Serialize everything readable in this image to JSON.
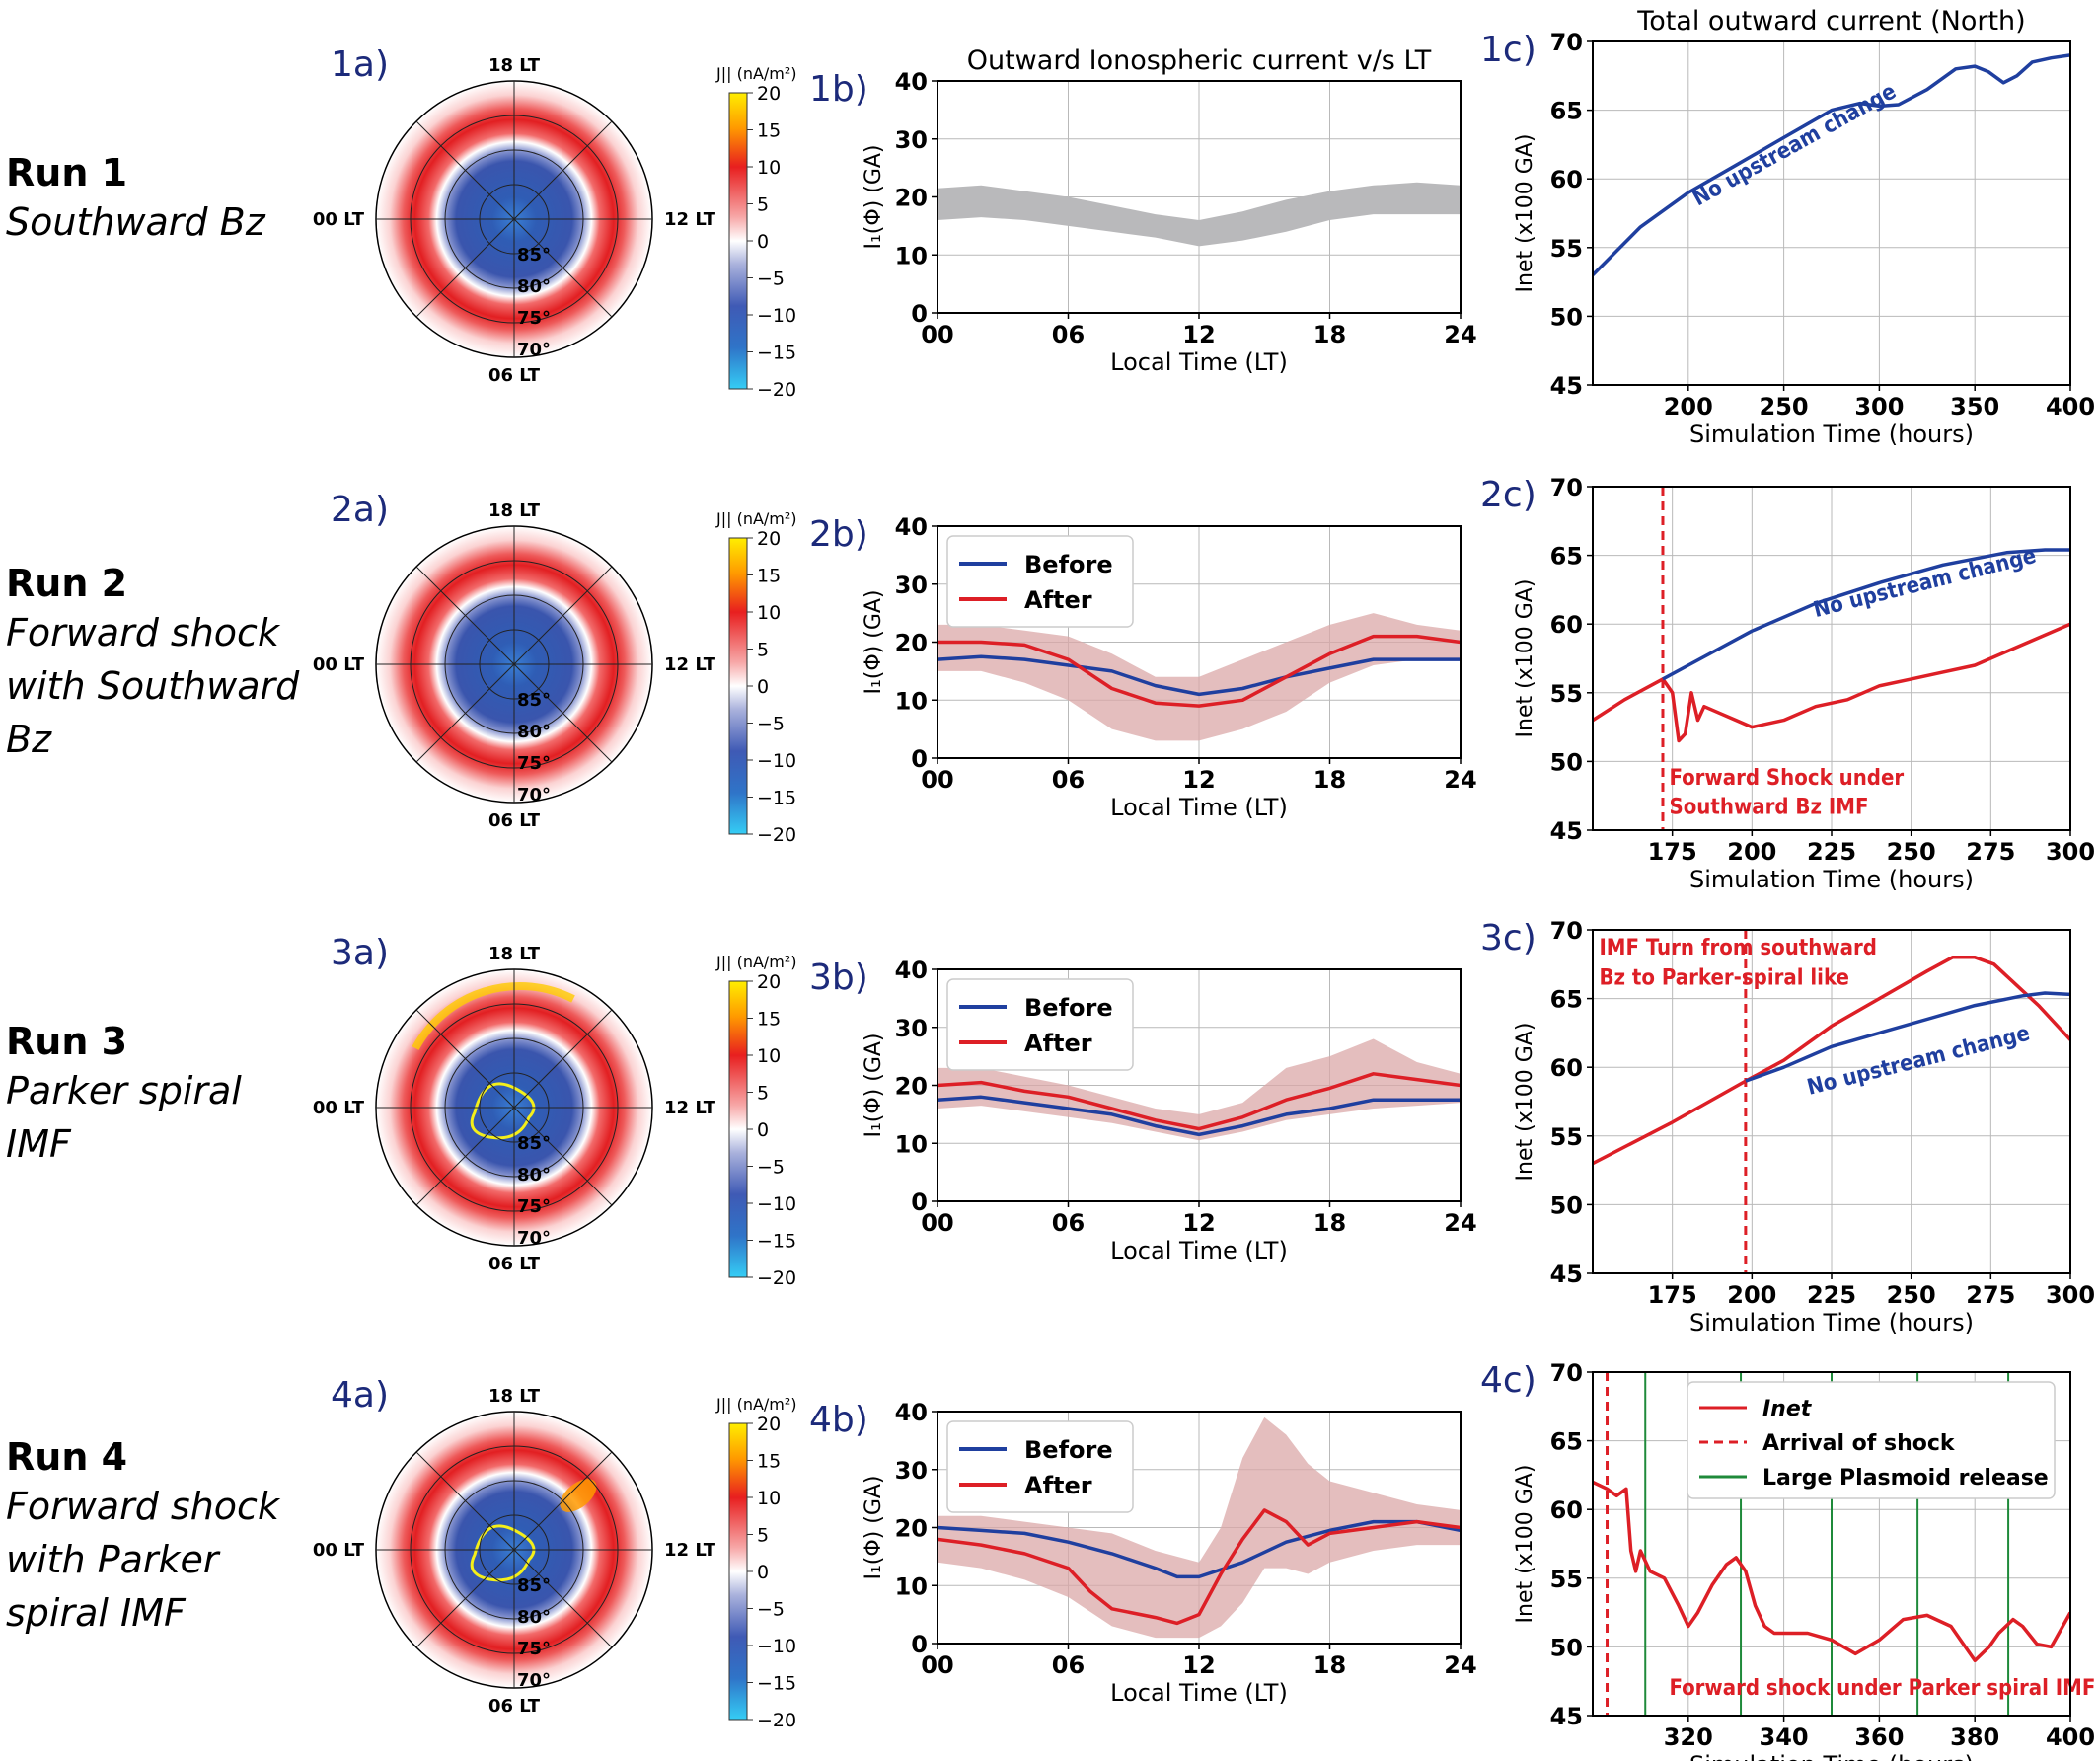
{
  "colors": {
    "before": "#1f3f9f",
    "after": "#dd1f26",
    "band_gray": "#b9b9bb",
    "band_after": "#dba8a8",
    "band_before": "#8e9fd6",
    "panel_label": "#1c2a7a",
    "plasmoid": "#1f8a3a"
  },
  "runs": [
    {
      "title": "Run 1",
      "subtitle_lines": [
        "Southward Bz"
      ]
    },
    {
      "title": "Run 2",
      "subtitle_lines": [
        "Forward shock",
        "with Southward",
        "Bz"
      ]
    },
    {
      "title": "Run 3",
      "subtitle_lines": [
        "Parker spiral",
        "IMF"
      ]
    },
    {
      "title": "Run 4",
      "subtitle_lines": [
        "Forward shock",
        "with Parker",
        "spiral IMF"
      ]
    }
  ],
  "panel_labels": {
    "a": [
      "1a)",
      "2a)",
      "3a)",
      "4a)"
    ],
    "b": [
      "1b)",
      "2b)",
      "3b)",
      "4b)"
    ],
    "c": [
      "1c)",
      "2c)",
      "3c)",
      "4c)"
    ]
  },
  "polar": {
    "lt_labels": {
      "top": "18 LT",
      "left": "00 LT",
      "right": "12 LT",
      "bottom": "06 LT"
    },
    "lat_labels": [
      "85°",
      "80°",
      "75°",
      "70°"
    ],
    "colorbar_title": "J||  (nA/m²)",
    "colorbar_ticks": [
      "20",
      "15",
      "10",
      "5",
      "0",
      "−5",
      "−10",
      "−15",
      "−20"
    ]
  },
  "chart_data": [
    {
      "panel": "1b",
      "type": "area",
      "title": "Outward Ionospheric current v/s LT",
      "xlabel": "Local Time (LT)",
      "ylabel": "I₁(Φ) (GA)",
      "xticks": [
        "00",
        "06",
        "12",
        "18",
        "24"
      ],
      "yticks": [
        "0",
        "10",
        "20",
        "30",
        "40"
      ],
      "xlim": [
        0,
        24
      ],
      "ylim": [
        0,
        40
      ],
      "grid": true,
      "band": {
        "x": [
          0,
          2,
          4,
          6,
          8,
          10,
          12,
          14,
          16,
          18,
          20,
          22,
          24
        ],
        "lower": [
          16,
          16.5,
          16,
          15,
          14,
          13,
          11.5,
          12.5,
          14,
          16,
          17,
          17,
          17
        ],
        "upper": [
          21.5,
          22,
          21,
          20,
          18.5,
          17,
          16,
          17.5,
          19.5,
          21,
          22,
          22.5,
          22
        ]
      }
    },
    {
      "panel": "1c",
      "type": "line",
      "title": "Total outward current (North)",
      "xlabel": "Simulation Time (hours)",
      "ylabel": "Inet (x100 GA)",
      "xlim": [
        150,
        400
      ],
      "ylim": [
        45,
        70
      ],
      "xticks": [
        "200",
        "250",
        "300",
        "350",
        "400"
      ],
      "yticks": [
        "45",
        "50",
        "55",
        "60",
        "65",
        "70"
      ],
      "grid": true,
      "series": [
        {
          "x": [
            150,
            175,
            200,
            225,
            250,
            275,
            290,
            300,
            310,
            325,
            340,
            350,
            357,
            365,
            372,
            380,
            390,
            400
          ],
          "y": [
            53,
            56.5,
            59,
            61,
            63,
            65,
            65.5,
            65.3,
            65.4,
            66.5,
            68,
            68.2,
            67.8,
            67,
            67.5,
            68.5,
            68.8,
            69
          ],
          "color": "before"
        }
      ],
      "annotations": [
        {
          "text": "No upstream change",
          "x": 205,
          "y": 58,
          "rotate": -29,
          "color": "before"
        }
      ]
    },
    {
      "panel": "2b",
      "type": "line",
      "xlabel": "Local Time (LT)",
      "ylabel": "I₁(Φ) (GA)",
      "xticks": [
        "00",
        "06",
        "12",
        "18",
        "24"
      ],
      "yticks": [
        "0",
        "10",
        "20",
        "30",
        "40"
      ],
      "xlim": [
        0,
        24
      ],
      "ylim": [
        0,
        40
      ],
      "grid": true,
      "legend": "top-left",
      "series": [
        {
          "name": "Before",
          "color": "before",
          "x": [
            0,
            2,
            4,
            6,
            8,
            10,
            12,
            14,
            16,
            18,
            20,
            22,
            24
          ],
          "y": [
            17,
            17.5,
            17,
            16,
            15,
            12.5,
            11,
            12,
            14,
            15.5,
            17,
            17,
            17
          ]
        },
        {
          "name": "After",
          "color": "after",
          "x": [
            0,
            2,
            4,
            6,
            8,
            10,
            12,
            14,
            16,
            18,
            20,
            22,
            24
          ],
          "y": [
            20,
            20,
            19.5,
            17,
            12,
            9.5,
            9,
            10,
            14,
            18,
            21,
            21,
            20
          ]
        }
      ],
      "spread": {
        "x": [
          0,
          2,
          4,
          6,
          8,
          10,
          12,
          14,
          16,
          18,
          20,
          22,
          24
        ],
        "lower": [
          15,
          15,
          13,
          10,
          5,
          3,
          3,
          5,
          8,
          13,
          16,
          17,
          17
        ],
        "upper": [
          23,
          23,
          22,
          21,
          18,
          14,
          14,
          17,
          20,
          23,
          25,
          23,
          22
        ]
      }
    },
    {
      "panel": "2c",
      "type": "line",
      "xlabel": "Simulation Time (hours)",
      "ylabel": "Inet (x100 GA)",
      "xlim": [
        150,
        300
      ],
      "ylim": [
        45,
        70
      ],
      "xticks": [
        "175",
        "200",
        "225",
        "250",
        "275",
        "300"
      ],
      "yticks": [
        "45",
        "50",
        "55",
        "60",
        "65",
        "70"
      ],
      "grid": true,
      "vlines": [
        {
          "x": 172,
          "color": "after",
          "dashed": true
        }
      ],
      "series": [
        {
          "color": "after",
          "x": [
            150,
            160,
            172,
            175,
            177,
            179,
            181,
            183,
            185,
            190,
            195,
            200,
            210,
            220,
            230,
            240,
            250,
            260,
            270,
            280,
            290,
            300
          ],
          "y": [
            53,
            54.5,
            56,
            55,
            51.5,
            52,
            55,
            53,
            54,
            53.5,
            53,
            52.5,
            53,
            54,
            54.5,
            55.5,
            56,
            56.5,
            57,
            58,
            59,
            60
          ]
        },
        {
          "color": "before",
          "x": [
            172,
            180,
            200,
            220,
            240,
            260,
            280,
            292,
            300
          ],
          "y": [
            56,
            57,
            59.5,
            61.5,
            63,
            64.3,
            65.2,
            65.4,
            65.4
          ]
        }
      ],
      "annotations": [
        {
          "text": "No upstream change",
          "x": 220,
          "y": 60.5,
          "rotate": -14,
          "color": "before"
        },
        {
          "text": "Forward Shock under",
          "x": 174,
          "y": 48.3,
          "rotate": 0,
          "color": "after"
        },
        {
          "text": "Southward Bz IMF",
          "x": 174,
          "y": 46.2,
          "rotate": 0,
          "color": "after"
        }
      ]
    },
    {
      "panel": "3b",
      "type": "line",
      "xlabel": "Local Time (LT)",
      "ylabel": "I₁(Φ) (GA)",
      "xticks": [
        "00",
        "06",
        "12",
        "18",
        "24"
      ],
      "yticks": [
        "0",
        "10",
        "20",
        "30",
        "40"
      ],
      "xlim": [
        0,
        24
      ],
      "ylim": [
        0,
        40
      ],
      "grid": true,
      "legend": "top-left",
      "series": [
        {
          "name": "Before",
          "color": "before",
          "x": [
            0,
            2,
            4,
            6,
            8,
            10,
            12,
            14,
            16,
            18,
            20,
            22,
            24
          ],
          "y": [
            17.5,
            18,
            17,
            16,
            15,
            13,
            11.5,
            13,
            15,
            16,
            17.5,
            17.5,
            17.5
          ]
        },
        {
          "name": "After",
          "color": "after",
          "x": [
            0,
            2,
            4,
            6,
            8,
            10,
            12,
            14,
            16,
            18,
            20,
            22,
            24
          ],
          "y": [
            20,
            20.5,
            19,
            18,
            16,
            14,
            12.5,
            14.5,
            17.5,
            19.5,
            22,
            21,
            20
          ]
        }
      ],
      "spread": {
        "x": [
          0,
          2,
          4,
          6,
          8,
          10,
          12,
          14,
          16,
          18,
          20,
          22,
          24
        ],
        "lower": [
          16,
          16.5,
          15.5,
          14.5,
          13.5,
          12,
          10.5,
          12,
          14,
          15,
          16,
          16.5,
          17
        ],
        "upper": [
          23,
          23,
          21.5,
          20,
          18,
          16,
          15,
          17,
          23,
          25,
          28,
          24,
          22
        ]
      }
    },
    {
      "panel": "3c",
      "type": "line",
      "xlabel": "Simulation Time (hours)",
      "ylabel": "Inet (x100 GA)",
      "xlim": [
        150,
        300
      ],
      "ylim": [
        45,
        70
      ],
      "xticks": [
        "175",
        "200",
        "225",
        "250",
        "275",
        "300"
      ],
      "yticks": [
        "45",
        "50",
        "55",
        "60",
        "65",
        "70"
      ],
      "grid": true,
      "vlines": [
        {
          "x": 198,
          "color": "after",
          "dashed": true
        }
      ],
      "series": [
        {
          "color": "after",
          "x": [
            150,
            175,
            198,
            210,
            225,
            240,
            255,
            263,
            270,
            276,
            283,
            290,
            300
          ],
          "y": [
            53,
            56,
            59,
            60.5,
            63,
            65,
            67,
            68,
            68,
            67.5,
            66,
            64.5,
            62
          ]
        },
        {
          "color": "before",
          "x": [
            198,
            210,
            225,
            240,
            255,
            270,
            285,
            292,
            300
          ],
          "y": [
            59,
            60,
            61.5,
            62.5,
            63.5,
            64.5,
            65.2,
            65.4,
            65.3
          ]
        }
      ],
      "annotations": [
        {
          "text": "No upstream change",
          "x": 218,
          "y": 58,
          "rotate": -14,
          "color": "before"
        },
        {
          "text": "IMF Turn from southward",
          "x": 152,
          "y": 68.2,
          "rotate": 0,
          "color": "after"
        },
        {
          "text": "Bz to Parker-spiral like",
          "x": 152,
          "y": 66,
          "rotate": 0,
          "color": "after"
        }
      ]
    },
    {
      "panel": "4b",
      "type": "line",
      "xlabel": "Local Time (LT)",
      "ylabel": "I₁(Φ) (GA)",
      "xticks": [
        "00",
        "06",
        "12",
        "18",
        "24"
      ],
      "yticks": [
        "0",
        "10",
        "20",
        "30",
        "40"
      ],
      "xlim": [
        0,
        24
      ],
      "ylim": [
        0,
        40
      ],
      "grid": true,
      "legend": "top-left",
      "series": [
        {
          "name": "Before",
          "color": "before",
          "x": [
            0,
            2,
            4,
            6,
            8,
            10,
            11,
            12,
            14,
            16,
            18,
            20,
            22,
            24
          ],
          "y": [
            20,
            19.5,
            19,
            17.5,
            15.5,
            13,
            11.5,
            11.5,
            14,
            17.5,
            19.5,
            21,
            21,
            19.5
          ]
        },
        {
          "name": "After",
          "color": "after",
          "x": [
            0,
            2,
            4,
            6,
            7,
            8,
            10,
            11,
            12,
            13,
            14,
            15,
            16,
            17,
            18,
            20,
            22,
            24
          ],
          "y": [
            18,
            17,
            15.5,
            13,
            9,
            6,
            4.5,
            3.5,
            5,
            12,
            18,
            23,
            21,
            17,
            19,
            20,
            21,
            20
          ]
        }
      ],
      "spread": {
        "x": [
          0,
          2,
          4,
          6,
          8,
          10,
          12,
          13,
          14,
          15,
          16,
          17,
          18,
          20,
          22,
          24
        ],
        "lower": [
          14,
          13,
          11,
          8,
          3,
          1,
          1,
          3,
          7,
          13,
          13,
          12,
          14,
          16,
          17,
          17
        ],
        "upper": [
          22,
          22,
          21,
          20,
          19,
          16,
          14,
          20,
          32,
          39,
          36,
          31,
          28,
          26,
          24,
          23
        ]
      }
    },
    {
      "panel": "4c",
      "type": "line",
      "xlabel": "Simulation Time (hours)",
      "ylabel": "Inet (x100 GA)",
      "xlim": [
        300,
        400
      ],
      "ylim": [
        45,
        70
      ],
      "xticks": [
        "320",
        "340",
        "360",
        "380",
        "400"
      ],
      "yticks": [
        "45",
        "50",
        "55",
        "60",
        "65",
        "70"
      ],
      "grid": true,
      "legend": "top-right",
      "legend_entries": [
        {
          "label": "Inet",
          "style": "solid",
          "color": "after"
        },
        {
          "label": "Arrival of shock",
          "style": "dashed",
          "color": "after"
        },
        {
          "label": "Large Plasmoid release",
          "style": "solid",
          "color": "plasmoid"
        }
      ],
      "vlines": [
        {
          "x": 303,
          "color": "after",
          "dashed": true
        },
        {
          "x": 311,
          "color": "plasmoid"
        },
        {
          "x": 331,
          "color": "plasmoid"
        },
        {
          "x": 350,
          "color": "plasmoid"
        },
        {
          "x": 368,
          "color": "plasmoid"
        },
        {
          "x": 387,
          "color": "plasmoid"
        }
      ],
      "series": [
        {
          "color": "after",
          "x": [
            300,
            303,
            305,
            307,
            308,
            309,
            310,
            312,
            315,
            318,
            320,
            322,
            325,
            328,
            330,
            332,
            334,
            336,
            338,
            340,
            345,
            350,
            355,
            360,
            365,
            370,
            375,
            378,
            380,
            383,
            385,
            388,
            390,
            393,
            396,
            400
          ],
          "y": [
            62,
            61.5,
            61,
            61.5,
            57,
            55.5,
            57,
            55.5,
            55,
            53,
            51.5,
            52.5,
            54.5,
            56,
            56.5,
            55.5,
            53,
            51.5,
            51,
            51,
            51,
            50.5,
            49.5,
            50.5,
            52,
            52.3,
            51.5,
            50,
            49,
            50,
            51,
            52,
            51.5,
            50.2,
            50,
            52.5
          ]
        }
      ],
      "annotations": [
        {
          "text": "Forward shock under Parker spiral IMF",
          "x": 316,
          "y": 46.5,
          "rotate": 0,
          "color": "after"
        }
      ]
    }
  ]
}
